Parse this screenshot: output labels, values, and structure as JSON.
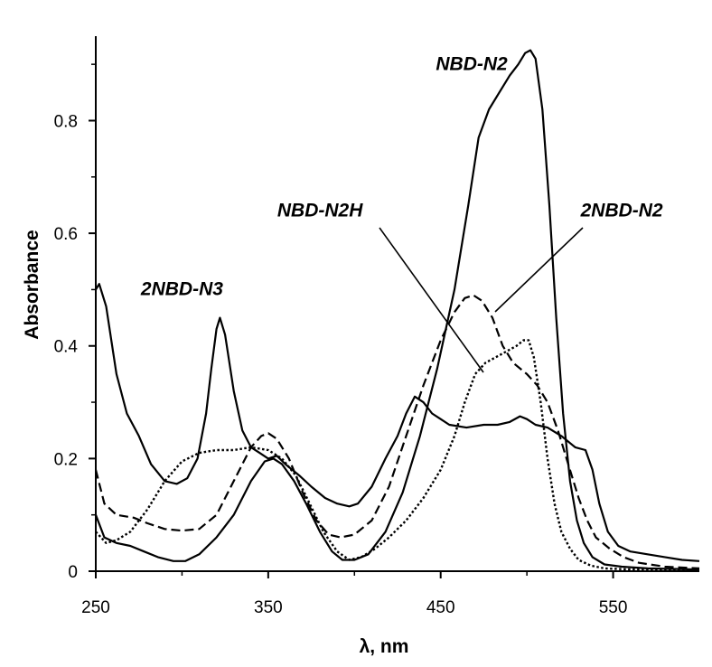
{
  "chart_data": {
    "type": "line",
    "title": "",
    "xlabel": "λ, nm",
    "ylabel": "Absorbance",
    "xlim": [
      250,
      600
    ],
    "ylim": [
      0,
      0.95
    ],
    "x_ticks": [
      250,
      350,
      450,
      550
    ],
    "x_tick_labels": [
      "250",
      "350",
      "450",
      "550"
    ],
    "y_ticks": [
      0,
      0.2,
      0.4,
      0.6,
      0.8
    ],
    "y_tick_labels": [
      "0",
      "0.2",
      "0.4",
      "0.6",
      "0.8"
    ],
    "grid": false,
    "legend": "none",
    "series": [
      {
        "name": "2NBD-N3",
        "style": "solid",
        "points": [
          [
            250,
            0.5
          ],
          [
            252,
            0.51
          ],
          [
            256,
            0.47
          ],
          [
            262,
            0.35
          ],
          [
            268,
            0.28
          ],
          [
            275,
            0.24
          ],
          [
            282,
            0.19
          ],
          [
            290,
            0.16
          ],
          [
            297,
            0.155
          ],
          [
            303,
            0.165
          ],
          [
            309,
            0.2
          ],
          [
            314,
            0.28
          ],
          [
            317,
            0.36
          ],
          [
            320,
            0.43
          ],
          [
            322,
            0.45
          ],
          [
            325,
            0.42
          ],
          [
            330,
            0.32
          ],
          [
            335,
            0.25
          ],
          [
            340,
            0.22
          ],
          [
            345,
            0.21
          ],
          [
            350,
            0.2
          ],
          [
            355,
            0.205
          ],
          [
            360,
            0.19
          ],
          [
            368,
            0.17
          ],
          [
            375,
            0.15
          ],
          [
            383,
            0.13
          ],
          [
            390,
            0.12
          ],
          [
            397,
            0.115
          ],
          [
            402,
            0.12
          ],
          [
            410,
            0.15
          ],
          [
            418,
            0.2
          ],
          [
            425,
            0.24
          ],
          [
            430,
            0.28
          ],
          [
            435,
            0.31
          ],
          [
            440,
            0.3
          ],
          [
            445,
            0.28
          ],
          [
            450,
            0.27
          ],
          [
            455,
            0.26
          ],
          [
            465,
            0.255
          ],
          [
            475,
            0.26
          ],
          [
            483,
            0.26
          ],
          [
            490,
            0.265
          ],
          [
            496,
            0.275
          ],
          [
            500,
            0.27
          ],
          [
            505,
            0.26
          ],
          [
            512,
            0.255
          ],
          [
            520,
            0.24
          ],
          [
            528,
            0.22
          ],
          [
            534,
            0.215
          ],
          [
            538,
            0.18
          ],
          [
            542,
            0.12
          ],
          [
            547,
            0.07
          ],
          [
            553,
            0.045
          ],
          [
            560,
            0.035
          ],
          [
            570,
            0.03
          ],
          [
            580,
            0.025
          ],
          [
            590,
            0.02
          ],
          [
            600,
            0.018
          ]
        ]
      },
      {
        "name": "NBD-N2",
        "style": "solid",
        "points": [
          [
            250,
            0.1
          ],
          [
            255,
            0.06
          ],
          [
            262,
            0.05
          ],
          [
            270,
            0.045
          ],
          [
            278,
            0.035
          ],
          [
            286,
            0.025
          ],
          [
            295,
            0.018
          ],
          [
            302,
            0.018
          ],
          [
            310,
            0.03
          ],
          [
            320,
            0.06
          ],
          [
            330,
            0.1
          ],
          [
            340,
            0.16
          ],
          [
            348,
            0.195
          ],
          [
            353,
            0.2
          ],
          [
            358,
            0.19
          ],
          [
            365,
            0.16
          ],
          [
            372,
            0.12
          ],
          [
            380,
            0.07
          ],
          [
            387,
            0.035
          ],
          [
            393,
            0.02
          ],
          [
            400,
            0.02
          ],
          [
            408,
            0.03
          ],
          [
            418,
            0.07
          ],
          [
            428,
            0.14
          ],
          [
            438,
            0.24
          ],
          [
            448,
            0.36
          ],
          [
            458,
            0.5
          ],
          [
            466,
            0.65
          ],
          [
            472,
            0.77
          ],
          [
            478,
            0.82
          ],
          [
            484,
            0.85
          ],
          [
            490,
            0.88
          ],
          [
            495,
            0.9
          ],
          [
            499,
            0.92
          ],
          [
            502,
            0.925
          ],
          [
            505,
            0.91
          ],
          [
            509,
            0.82
          ],
          [
            513,
            0.65
          ],
          [
            517,
            0.45
          ],
          [
            521,
            0.28
          ],
          [
            525,
            0.16
          ],
          [
            529,
            0.09
          ],
          [
            533,
            0.05
          ],
          [
            538,
            0.025
          ],
          [
            545,
            0.012
          ],
          [
            555,
            0.008
          ],
          [
            570,
            0.005
          ],
          [
            600,
            0.003
          ]
        ]
      },
      {
        "name": "2NBD-N2",
        "style": "dashed",
        "points": [
          [
            250,
            0.18
          ],
          [
            255,
            0.12
          ],
          [
            262,
            0.1
          ],
          [
            272,
            0.095
          ],
          [
            280,
            0.085
          ],
          [
            290,
            0.075
          ],
          [
            300,
            0.072
          ],
          [
            310,
            0.075
          ],
          [
            320,
            0.1
          ],
          [
            330,
            0.16
          ],
          [
            340,
            0.22
          ],
          [
            346,
            0.24
          ],
          [
            350,
            0.245
          ],
          [
            355,
            0.235
          ],
          [
            362,
            0.2
          ],
          [
            370,
            0.14
          ],
          [
            378,
            0.09
          ],
          [
            385,
            0.065
          ],
          [
            392,
            0.06
          ],
          [
            400,
            0.065
          ],
          [
            410,
            0.09
          ],
          [
            420,
            0.15
          ],
          [
            430,
            0.24
          ],
          [
            440,
            0.33
          ],
          [
            450,
            0.41
          ],
          [
            458,
            0.46
          ],
          [
            464,
            0.485
          ],
          [
            469,
            0.49
          ],
          [
            474,
            0.48
          ],
          [
            480,
            0.45
          ],
          [
            486,
            0.4
          ],
          [
            492,
            0.37
          ],
          [
            500,
            0.35
          ],
          [
            506,
            0.33
          ],
          [
            512,
            0.3
          ],
          [
            518,
            0.25
          ],
          [
            524,
            0.19
          ],
          [
            530,
            0.13
          ],
          [
            535,
            0.09
          ],
          [
            540,
            0.06
          ],
          [
            548,
            0.04
          ],
          [
            556,
            0.025
          ],
          [
            565,
            0.015
          ],
          [
            580,
            0.008
          ],
          [
            600,
            0.005
          ]
        ]
      },
      {
        "name": "NBD-N2H",
        "style": "dotted",
        "points": [
          [
            250,
            0.07
          ],
          [
            256,
            0.05
          ],
          [
            262,
            0.055
          ],
          [
            270,
            0.07
          ],
          [
            280,
            0.11
          ],
          [
            290,
            0.16
          ],
          [
            300,
            0.195
          ],
          [
            310,
            0.21
          ],
          [
            320,
            0.215
          ],
          [
            330,
            0.215
          ],
          [
            340,
            0.22
          ],
          [
            350,
            0.215
          ],
          [
            358,
            0.2
          ],
          [
            366,
            0.17
          ],
          [
            374,
            0.12
          ],
          [
            382,
            0.07
          ],
          [
            390,
            0.035
          ],
          [
            397,
            0.02
          ],
          [
            404,
            0.025
          ],
          [
            412,
            0.04
          ],
          [
            420,
            0.06
          ],
          [
            430,
            0.09
          ],
          [
            440,
            0.13
          ],
          [
            450,
            0.18
          ],
          [
            458,
            0.24
          ],
          [
            464,
            0.3
          ],
          [
            470,
            0.35
          ],
          [
            476,
            0.37
          ],
          [
            482,
            0.38
          ],
          [
            488,
            0.39
          ],
          [
            494,
            0.4
          ],
          [
            498,
            0.41
          ],
          [
            501,
            0.41
          ],
          [
            504,
            0.38
          ],
          [
            508,
            0.3
          ],
          [
            512,
            0.2
          ],
          [
            516,
            0.12
          ],
          [
            520,
            0.07
          ],
          [
            525,
            0.04
          ],
          [
            530,
            0.02
          ],
          [
            537,
            0.01
          ],
          [
            545,
            0.005
          ],
          [
            560,
            0.003
          ],
          [
            600,
            0.002
          ]
        ]
      }
    ],
    "annotations": [
      {
        "text": "NBD-N2",
        "x": 468,
        "y": 0.89
      },
      {
        "text": "NBD-N2H",
        "x": 380,
        "y": 0.63
      },
      {
        "text": "2NBD-N2",
        "x": 555,
        "y": 0.63
      },
      {
        "text": "2NBD-N3",
        "x": 300,
        "y": 0.49
      }
    ]
  }
}
